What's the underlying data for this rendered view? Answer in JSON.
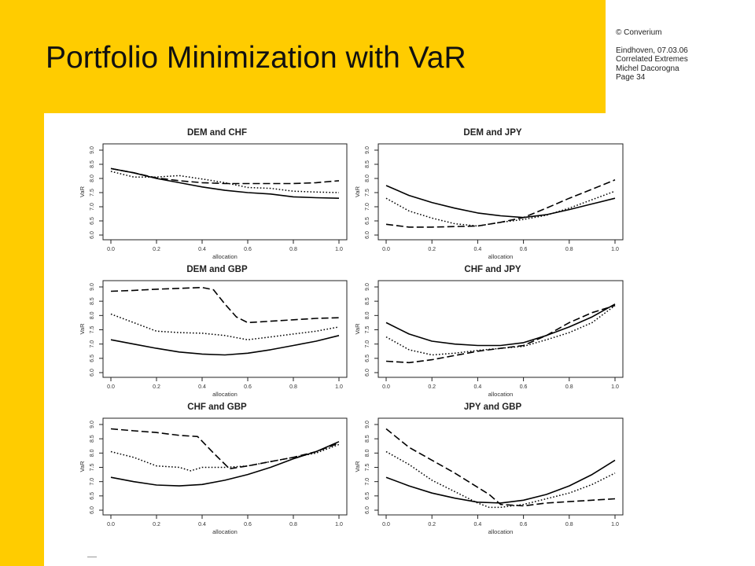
{
  "header": {
    "title": "Portfolio Minimization with VaR",
    "copyright": "© Converium",
    "meta_lines": [
      "Eindhoven, 07.03.06",
      "Correlated Extremes",
      "Michel Dacorogna",
      "Page 34"
    ]
  },
  "colors": {
    "brand_yellow": "#ffcc00",
    "line": "#000000"
  },
  "chart_data": [
    {
      "type": "line",
      "title": "DEM and CHF",
      "xlabel": "allocation",
      "ylabel": "VaR",
      "xlim": [
        0,
        1
      ],
      "ylim": [
        6.0,
        9.0
      ],
      "xticks": [
        "0.0",
        "0.2",
        "0.4",
        "0.6",
        "0.8",
        "1.0"
      ],
      "yticks": [
        "6.0",
        "6.5",
        "7.0",
        "7.5",
        "8.0",
        "8.5",
        "9.0"
      ],
      "series": [
        {
          "style": "solid",
          "x": [
            0,
            0.1,
            0.2,
            0.3,
            0.4,
            0.5,
            0.6,
            0.7,
            0.8,
            0.9,
            1.0
          ],
          "y": [
            8.35,
            8.2,
            8.0,
            7.85,
            7.7,
            7.58,
            7.5,
            7.45,
            7.35,
            7.32,
            7.3
          ]
        },
        {
          "style": "dashed",
          "x": [
            0,
            0.1,
            0.2,
            0.3,
            0.4,
            0.5,
            0.6,
            0.7,
            0.8,
            0.9,
            1.0
          ],
          "y": [
            8.35,
            8.2,
            8.02,
            7.92,
            7.85,
            7.82,
            7.82,
            7.82,
            7.82,
            7.85,
            7.92
          ]
        },
        {
          "style": "dotted",
          "x": [
            0,
            0.1,
            0.2,
            0.3,
            0.4,
            0.5,
            0.6,
            0.7,
            0.8,
            0.9,
            1.0
          ],
          "y": [
            8.25,
            8.05,
            8.05,
            8.1,
            7.98,
            7.85,
            7.68,
            7.65,
            7.55,
            7.52,
            7.5
          ]
        }
      ]
    },
    {
      "type": "line",
      "title": "DEM and JPY",
      "xlabel": "allocation",
      "ylabel": "VaR",
      "xlim": [
        0,
        1
      ],
      "ylim": [
        6.0,
        9.0
      ],
      "xticks": [
        "0.0",
        "0.2",
        "0.4",
        "0.6",
        "0.8",
        "1.0"
      ],
      "yticks": [
        "6.0",
        "6.5",
        "7.0",
        "7.5",
        "8.0",
        "8.5",
        "9.0"
      ],
      "series": [
        {
          "style": "solid",
          "x": [
            0,
            0.1,
            0.2,
            0.3,
            0.4,
            0.5,
            0.6,
            0.7,
            0.8,
            0.9,
            1.0
          ],
          "y": [
            7.75,
            7.4,
            7.15,
            6.95,
            6.78,
            6.68,
            6.62,
            6.72,
            6.9,
            7.1,
            7.3
          ]
        },
        {
          "style": "dashed",
          "x": [
            0,
            0.1,
            0.2,
            0.3,
            0.4,
            0.5,
            0.6,
            0.7,
            0.8,
            0.9,
            1.0
          ],
          "y": [
            6.38,
            6.28,
            6.28,
            6.3,
            6.32,
            6.45,
            6.62,
            6.95,
            7.3,
            7.62,
            7.95
          ]
        },
        {
          "style": "dotted",
          "x": [
            0,
            0.1,
            0.2,
            0.3,
            0.4,
            0.5,
            0.6,
            0.7,
            0.8,
            0.9,
            1.0
          ],
          "y": [
            7.3,
            6.85,
            6.6,
            6.4,
            6.32,
            6.45,
            6.55,
            6.7,
            6.95,
            7.25,
            7.55
          ]
        }
      ]
    },
    {
      "type": "line",
      "title": "DEM and GBP",
      "xlabel": "allocation",
      "ylabel": "VaR",
      "xlim": [
        0,
        1
      ],
      "ylim": [
        6.0,
        9.0
      ],
      "xticks": [
        "0.0",
        "0.2",
        "0.4",
        "0.6",
        "0.8",
        "1.0"
      ],
      "yticks": [
        "6.0",
        "6.5",
        "7.0",
        "7.5",
        "8.0",
        "8.5",
        "9.0"
      ],
      "series": [
        {
          "style": "solid",
          "x": [
            0,
            0.1,
            0.2,
            0.3,
            0.4,
            0.5,
            0.6,
            0.7,
            0.8,
            0.9,
            1.0
          ],
          "y": [
            7.15,
            7.0,
            6.85,
            6.72,
            6.65,
            6.62,
            6.68,
            6.8,
            6.95,
            7.1,
            7.3
          ]
        },
        {
          "style": "dashed",
          "x": [
            0,
            0.1,
            0.2,
            0.3,
            0.4,
            0.45,
            0.5,
            0.55,
            0.6,
            0.7,
            0.8,
            0.9,
            1.0
          ],
          "y": [
            8.85,
            8.88,
            8.92,
            8.95,
            8.98,
            8.9,
            8.4,
            7.95,
            7.75,
            7.8,
            7.85,
            7.9,
            7.92
          ]
        },
        {
          "style": "dotted",
          "x": [
            0,
            0.1,
            0.2,
            0.3,
            0.4,
            0.5,
            0.6,
            0.7,
            0.8,
            0.9,
            1.0
          ],
          "y": [
            8.05,
            7.75,
            7.45,
            7.4,
            7.38,
            7.3,
            7.15,
            7.25,
            7.35,
            7.45,
            7.6
          ]
        }
      ]
    },
    {
      "type": "line",
      "title": "CHF and JPY",
      "xlabel": "allocation",
      "ylabel": "VaR",
      "xlim": [
        0,
        1
      ],
      "ylim": [
        6.0,
        9.0
      ],
      "xticks": [
        "0.0",
        "0.2",
        "0.4",
        "0.6",
        "0.8",
        "1.0"
      ],
      "yticks": [
        "6.0",
        "6.5",
        "7.0",
        "7.5",
        "8.0",
        "8.5",
        "9.0"
      ],
      "series": [
        {
          "style": "solid",
          "x": [
            0,
            0.1,
            0.2,
            0.3,
            0.4,
            0.5,
            0.6,
            0.7,
            0.8,
            0.9,
            1.0
          ],
          "y": [
            7.75,
            7.35,
            7.1,
            7.0,
            6.95,
            6.95,
            7.05,
            7.3,
            7.6,
            7.95,
            8.4
          ]
        },
        {
          "style": "dashed",
          "x": [
            0,
            0.1,
            0.2,
            0.3,
            0.4,
            0.5,
            0.6,
            0.7,
            0.8,
            0.9,
            1.0
          ],
          "y": [
            6.4,
            6.35,
            6.45,
            6.6,
            6.75,
            6.85,
            6.95,
            7.3,
            7.75,
            8.1,
            8.35
          ]
        },
        {
          "style": "dotted",
          "x": [
            0,
            0.1,
            0.2,
            0.3,
            0.4,
            0.5,
            0.6,
            0.7,
            0.8,
            0.9,
            1.0
          ],
          "y": [
            7.25,
            6.8,
            6.62,
            6.68,
            6.78,
            6.85,
            6.92,
            7.15,
            7.4,
            7.75,
            8.35
          ]
        }
      ]
    },
    {
      "type": "line",
      "title": "CHF and GBP",
      "xlabel": "allocation",
      "ylabel": "VaR",
      "xlim": [
        0,
        1
      ],
      "ylim": [
        6.0,
        9.0
      ],
      "xticks": [
        "0.0",
        "0.2",
        "0.4",
        "0.6",
        "0.8",
        "1.0"
      ],
      "yticks": [
        "6.0",
        "6.5",
        "7.0",
        "7.5",
        "8.0",
        "8.5",
        "9.0"
      ],
      "series": [
        {
          "style": "solid",
          "x": [
            0,
            0.1,
            0.2,
            0.3,
            0.4,
            0.5,
            0.6,
            0.7,
            0.8,
            0.9,
            1.0
          ],
          "y": [
            7.15,
            7.0,
            6.88,
            6.85,
            6.9,
            7.05,
            7.25,
            7.5,
            7.8,
            8.05,
            8.4
          ]
        },
        {
          "style": "dashed",
          "x": [
            0,
            0.1,
            0.2,
            0.3,
            0.38,
            0.45,
            0.52,
            0.6,
            0.7,
            0.8,
            0.9,
            1.0
          ],
          "y": [
            8.85,
            8.78,
            8.72,
            8.62,
            8.58,
            8.0,
            7.45,
            7.55,
            7.7,
            7.85,
            8.05,
            8.35
          ]
        },
        {
          "style": "dotted",
          "x": [
            0,
            0.1,
            0.2,
            0.3,
            0.35,
            0.4,
            0.5,
            0.6,
            0.7,
            0.8,
            0.9,
            1.0
          ],
          "y": [
            8.05,
            7.85,
            7.55,
            7.5,
            7.38,
            7.5,
            7.5,
            7.55,
            7.7,
            7.85,
            8.0,
            8.3
          ]
        }
      ]
    },
    {
      "type": "line",
      "title": "JPY and GBP",
      "xlabel": "allocation",
      "ylabel": "VaR",
      "xlim": [
        0,
        1
      ],
      "ylim": [
        6.0,
        9.0
      ],
      "xticks": [
        "0.0",
        "0.2",
        "0.4",
        "0.6",
        "0.8",
        "1.0"
      ],
      "yticks": [
        "6.0",
        "6.5",
        "7.0",
        "7.5",
        "8.0",
        "8.5",
        "9.0"
      ],
      "series": [
        {
          "style": "solid",
          "x": [
            0,
            0.1,
            0.2,
            0.3,
            0.4,
            0.5,
            0.6,
            0.7,
            0.8,
            0.9,
            1.0
          ],
          "y": [
            7.15,
            6.85,
            6.6,
            6.42,
            6.28,
            6.25,
            6.35,
            6.55,
            6.85,
            7.25,
            7.75
          ]
        },
        {
          "style": "dashed",
          "x": [
            0,
            0.1,
            0.2,
            0.3,
            0.4,
            0.45,
            0.5,
            0.6,
            0.7,
            0.8,
            0.9,
            1.0
          ],
          "y": [
            8.85,
            8.2,
            7.75,
            7.3,
            6.8,
            6.55,
            6.2,
            6.15,
            6.25,
            6.3,
            6.35,
            6.4
          ]
        },
        {
          "style": "dotted",
          "x": [
            0,
            0.1,
            0.2,
            0.3,
            0.4,
            0.45,
            0.5,
            0.6,
            0.7,
            0.8,
            0.9,
            1.0
          ],
          "y": [
            8.05,
            7.6,
            7.05,
            6.65,
            6.25,
            6.1,
            6.1,
            6.2,
            6.4,
            6.6,
            6.9,
            7.3
          ]
        }
      ]
    }
  ]
}
